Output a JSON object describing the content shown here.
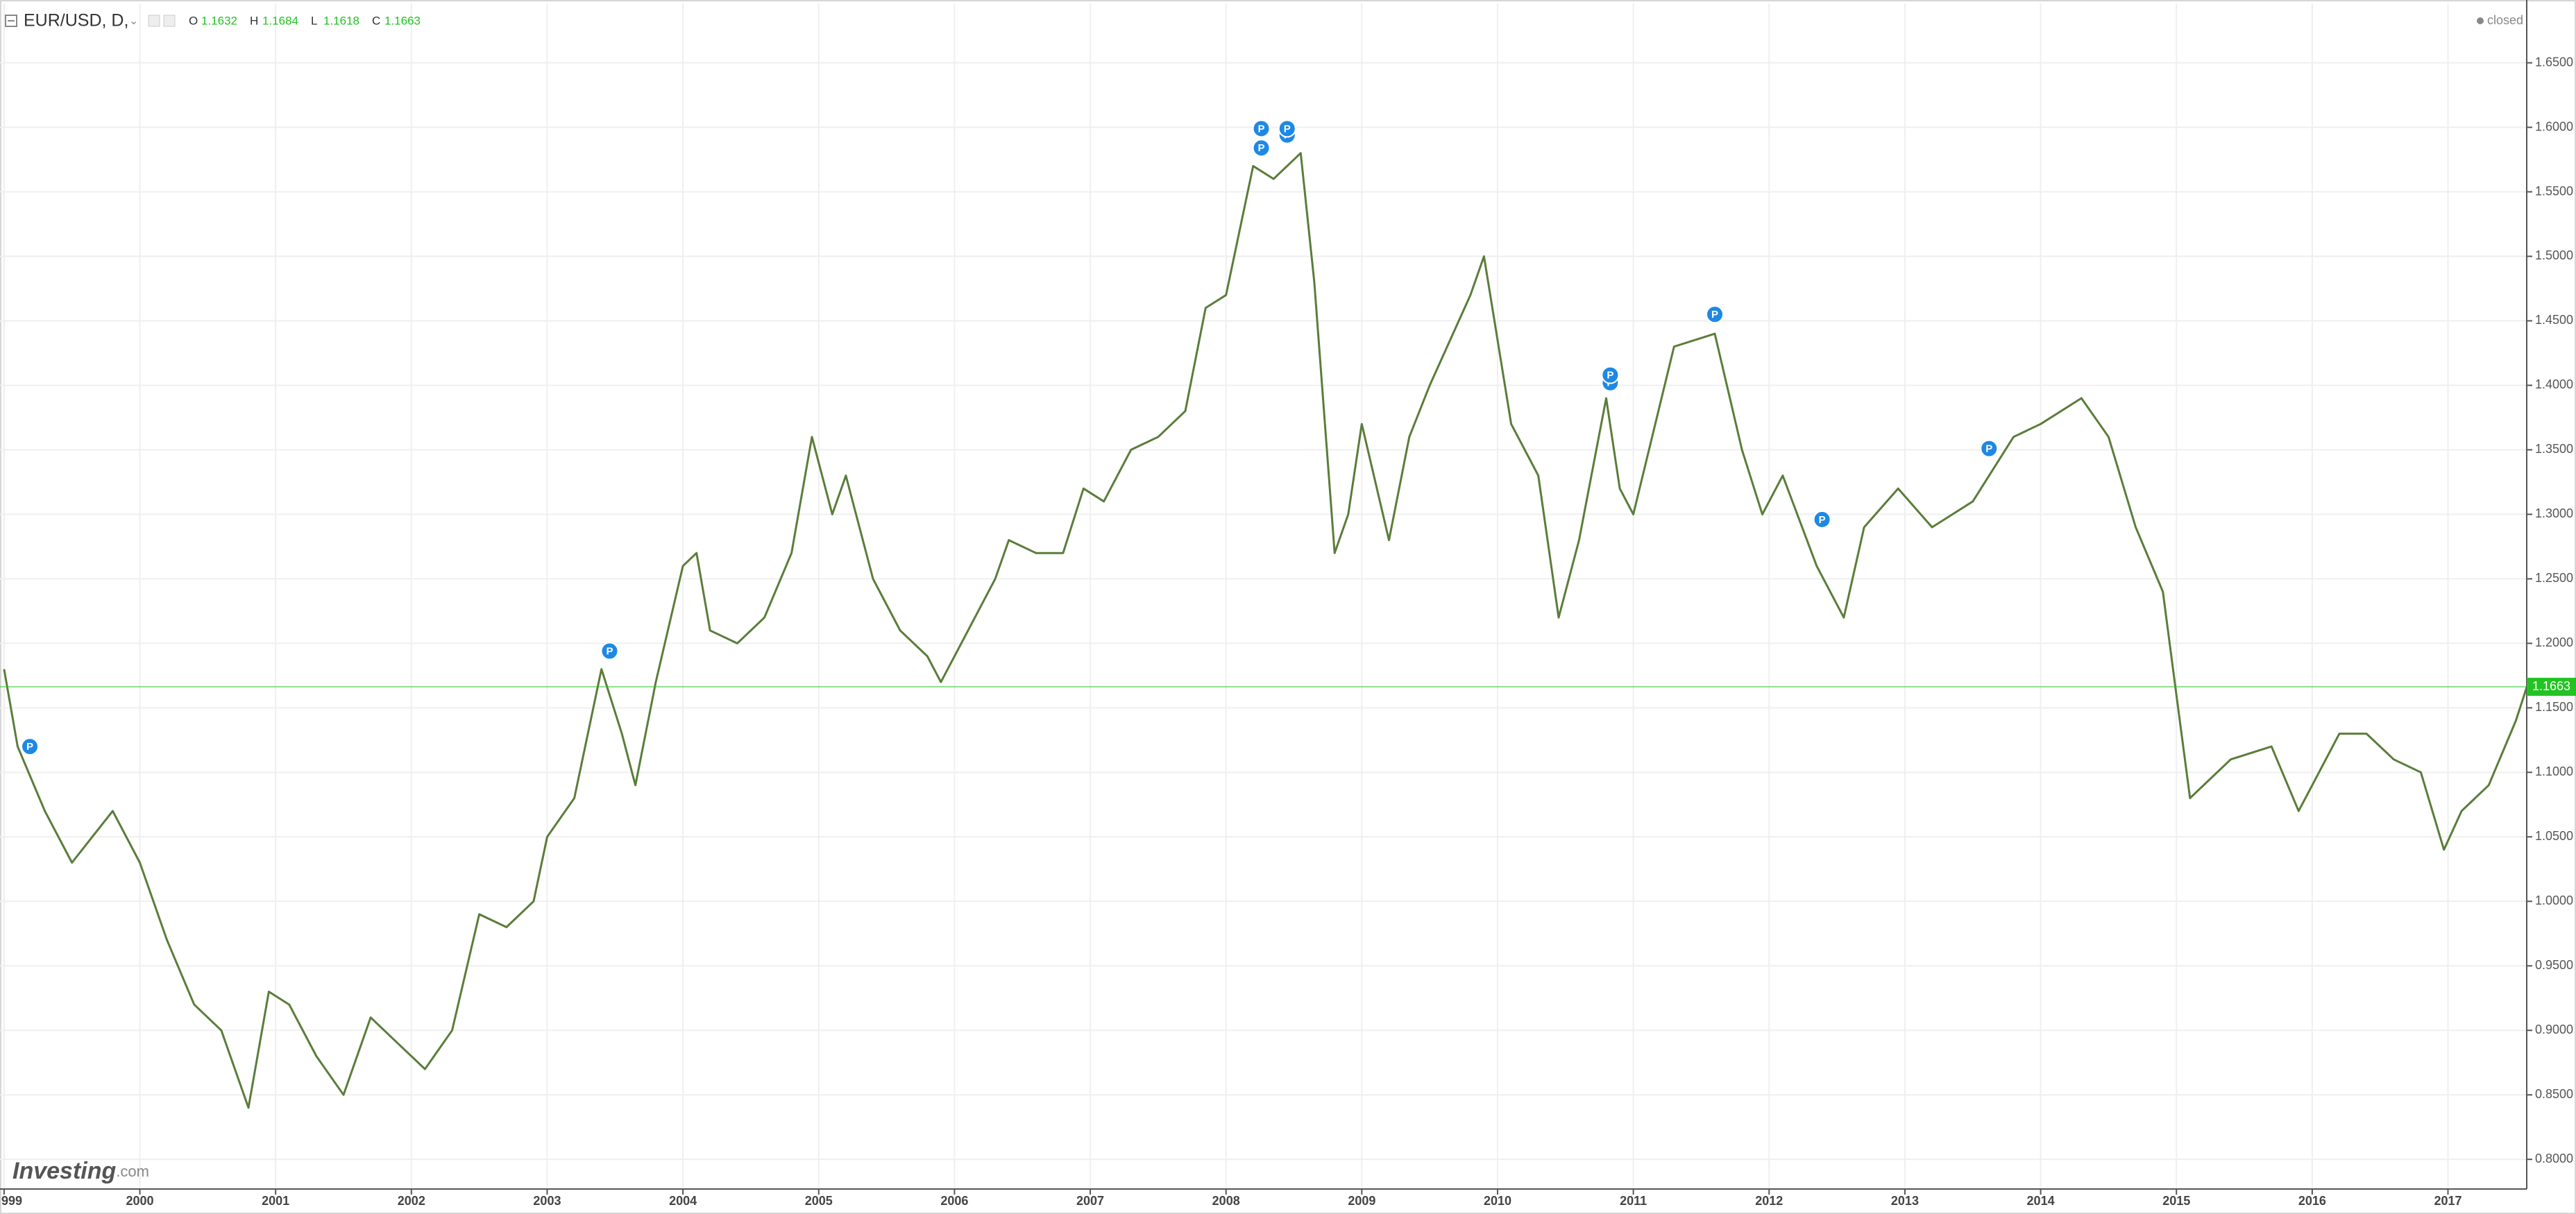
{
  "chart_data": {
    "type": "line",
    "title": "EUR/USD, D,",
    "ohlc": [
      {
        "label": "O",
        "value": 1.1632
      },
      {
        "label": "H",
        "value": 1.1684
      },
      {
        "label": "L",
        "value": 1.1618
      },
      {
        "label": "C",
        "value": 1.1663
      }
    ],
    "status": "closed",
    "watermark": {
      "name": "Investing",
      "suffix": ".com"
    },
    "color": "#5a7d3a",
    "last_color": "#22c322",
    "grid": true,
    "xlim": [
      1998.97,
      2017.58
    ],
    "ylim": [
      0.777,
      1.696
    ],
    "xticks": [
      {
        "value": 1999,
        "label": "999"
      },
      2000,
      2001,
      2002,
      2003,
      2004,
      2005,
      2006,
      2007,
      2008,
      2009,
      2010,
      2011,
      2012,
      2013,
      2014,
      2015,
      2016,
      2017
    ],
    "yticks": [
      {
        "value": 0.8,
        "label": "0.8000"
      },
      {
        "value": 0.85,
        "label": "0.8500"
      },
      {
        "value": 0.9,
        "label": "0.9000"
      },
      {
        "value": 0.95,
        "label": "0.9500"
      },
      {
        "value": 1.0,
        "label": "1.0000"
      },
      {
        "value": 1.05,
        "label": "1.0500"
      },
      {
        "value": 1.1,
        "label": "1.1000"
      },
      {
        "value": 1.15,
        "label": "1.1500"
      },
      {
        "value": 1.2,
        "label": "1.2000"
      },
      {
        "value": 1.25,
        "label": "1.2500"
      },
      {
        "value": 1.3,
        "label": "1.3000"
      },
      {
        "value": 1.35,
        "label": "1.3500"
      },
      {
        "value": 1.4,
        "label": "1.4000"
      },
      {
        "value": 1.45,
        "label": "1.4500"
      },
      {
        "value": 1.5,
        "label": "1.5000"
      },
      {
        "value": 1.55,
        "label": "1.5500"
      },
      {
        "value": 1.6,
        "label": "1.6000"
      },
      {
        "value": 1.65,
        "label": "1.6500"
      }
    ],
    "x": [
      1999.0,
      1999.1,
      1999.3,
      1999.5,
      1999.8,
      2000.0,
      2000.2,
      2000.4,
      2000.6,
      2000.8,
      2000.95,
      2001.1,
      2001.3,
      2001.5,
      2001.7,
      2001.9,
      2002.1,
      2002.3,
      2002.5,
      2002.7,
      2002.9,
      2003.0,
      2003.2,
      2003.4,
      2003.55,
      2003.65,
      2003.8,
      2004.0,
      2004.1,
      2004.2,
      2004.4,
      2004.6,
      2004.8,
      2004.95,
      2005.1,
      2005.2,
      2005.4,
      2005.6,
      2005.8,
      2005.9,
      2006.1,
      2006.3,
      2006.4,
      2006.6,
      2006.8,
      2006.95,
      2007.1,
      2007.3,
      2007.5,
      2007.7,
      2007.85,
      2008.0,
      2008.2,
      2008.35,
      2008.55,
      2008.65,
      2008.8,
      2008.9,
      2009.0,
      2009.2,
      2009.35,
      2009.5,
      2009.8,
      2009.9,
      2010.1,
      2010.3,
      2010.45,
      2010.6,
      2010.8,
      2010.9,
      2011.0,
      2011.3,
      2011.6,
      2011.8,
      2011.95,
      2012.1,
      2012.35,
      2012.55,
      2012.7,
      2012.95,
      2013.2,
      2013.5,
      2013.8,
      2014.0,
      2014.3,
      2014.5,
      2014.7,
      2014.9,
      2015.0,
      2015.1,
      2015.4,
      2015.7,
      2015.9,
      2016.0,
      2016.2,
      2016.4,
      2016.6,
      2016.8,
      2016.97,
      2017.1,
      2017.3,
      2017.5,
      2017.58
    ],
    "values": [
      1.18,
      1.12,
      1.07,
      1.03,
      1.07,
      1.03,
      0.97,
      0.92,
      0.9,
      0.84,
      0.93,
      0.92,
      0.88,
      0.85,
      0.91,
      0.89,
      0.87,
      0.9,
      0.99,
      0.98,
      1.0,
      1.05,
      1.08,
      1.18,
      1.13,
      1.09,
      1.17,
      1.26,
      1.27,
      1.21,
      1.2,
      1.22,
      1.27,
      1.36,
      1.3,
      1.33,
      1.25,
      1.21,
      1.19,
      1.17,
      1.21,
      1.25,
      1.28,
      1.27,
      1.27,
      1.32,
      1.31,
      1.35,
      1.36,
      1.38,
      1.46,
      1.47,
      1.57,
      1.56,
      1.58,
      1.48,
      1.27,
      1.3,
      1.37,
      1.28,
      1.36,
      1.4,
      1.47,
      1.5,
      1.37,
      1.33,
      1.22,
      1.28,
      1.39,
      1.32,
      1.3,
      1.43,
      1.44,
      1.35,
      1.3,
      1.33,
      1.26,
      1.22,
      1.29,
      1.32,
      1.29,
      1.31,
      1.36,
      1.37,
      1.39,
      1.36,
      1.29,
      1.24,
      1.16,
      1.08,
      1.11,
      1.12,
      1.07,
      1.09,
      1.13,
      1.13,
      1.11,
      1.1,
      1.04,
      1.07,
      1.09,
      1.14,
      1.166
    ],
    "markers": [
      {
        "x": 1999.19,
        "y": 1.12,
        "label": "P"
      },
      {
        "x": 2003.46,
        "y": 1.194,
        "label": "P"
      },
      {
        "x": 2008.26,
        "y": 1.599,
        "label": "P"
      },
      {
        "x": 2008.26,
        "y": 1.584,
        "label": "P"
      },
      {
        "x": 2008.45,
        "y": 1.594,
        "label": "P"
      },
      {
        "x": 2008.45,
        "y": 1.599,
        "label": "P"
      },
      {
        "x": 2010.83,
        "y": 1.402,
        "label": "P"
      },
      {
        "x": 2010.83,
        "y": 1.408,
        "label": "P"
      },
      {
        "x": 2011.6,
        "y": 1.455,
        "label": "P"
      },
      {
        "x": 2012.39,
        "y": 1.296,
        "label": "P"
      },
      {
        "x": 2013.62,
        "y": 1.351,
        "label": "P"
      }
    ]
  }
}
